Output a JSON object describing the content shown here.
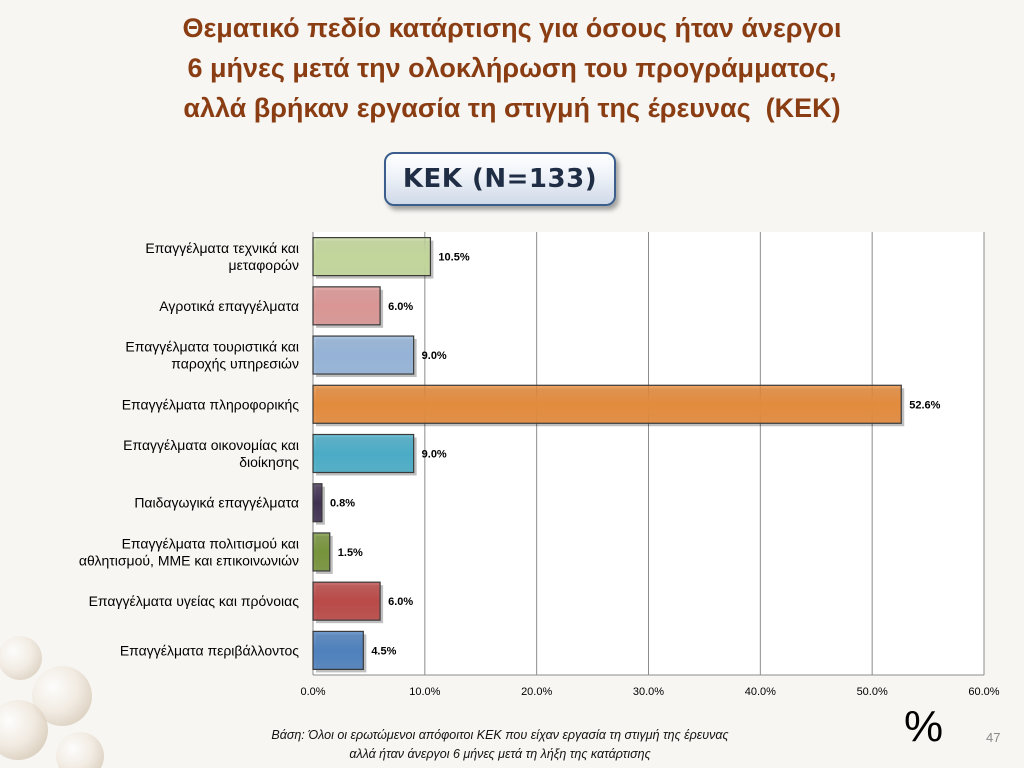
{
  "title": {
    "line1": "Θεματικό πεδίο κατάρτισης για όσους ήταν άνεργοι",
    "line2": "6 μήνες μετά την ολοκλήρωση του προγράμματος,",
    "line3": "αλλά βρήκαν εργασία τη στιγμή της έρευνας  (ΚΕΚ)"
  },
  "kek_label": "ΚΕΚ (Ν=133)",
  "chart_data": {
    "type": "bar",
    "orientation": "horizontal",
    "categories": [
      [
        "Επαγγέλματα τεχνικά και",
        "μεταφορών"
      ],
      [
        "Αγροτικά επαγγέλματα"
      ],
      [
        "Επαγγέλματα τουριστικά και",
        "παροχής υπηρεσιών"
      ],
      [
        "Επαγγέλματα πληροφορικής"
      ],
      [
        "Επαγγέλματα οικονομίας και",
        "διοίκησης"
      ],
      [
        "Παιδαγωγικά επαγγέλματα"
      ],
      [
        "Επαγγέλματα πολιτισμού και",
        "αθλητισμού, ΜΜΕ και επικοινωνιών"
      ],
      [
        "Επαγγέλματα υγείας και πρόνοιας"
      ],
      [
        "Επαγγέλματα περιβάλλοντος"
      ]
    ],
    "values": [
      10.5,
      6.0,
      9.0,
      52.6,
      9.0,
      0.8,
      1.5,
      6.0,
      4.5
    ],
    "value_labels": [
      "10.5%",
      "6.0%",
      "9.0%",
      "52.6%",
      "9.0%",
      "0.8%",
      "1.5%",
      "6.0%",
      "4.5%"
    ],
    "colors": [
      "#c2d69b",
      "#d99694",
      "#95b3d7",
      "#e38b3d",
      "#4bacc6",
      "#403152",
      "#77933c",
      "#b94a48",
      "#4f81bd"
    ],
    "xlim": [
      0,
      60
    ],
    "xticks": [
      0,
      10,
      20,
      30,
      40,
      50,
      60
    ],
    "xtick_labels": [
      "0.0%",
      "10.0%",
      "20.0%",
      "30.0%",
      "40.0%",
      "50.0%",
      "60.0%"
    ],
    "grid": true
  },
  "footnote": {
    "line1": "Βάση: Όλοι οι ερωτώμενοι απόφοιτοι ΚΕΚ που είχαν εργασία τη στιγμή της  έρευνας",
    "line2": "αλλά  ήταν άνεργοι 6 μήνες μετά τη λήξη της κατάρτισης"
  },
  "percent_symbol": "%",
  "page_number": "47"
}
